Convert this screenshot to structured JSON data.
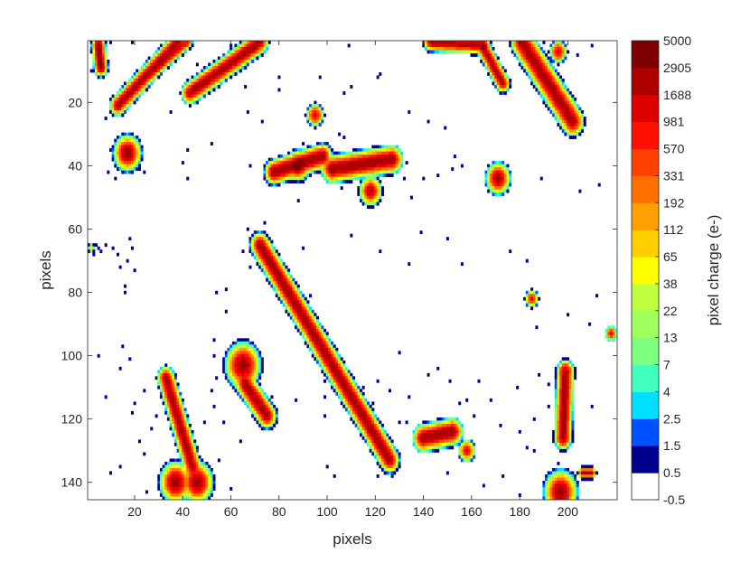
{
  "chart_data": {
    "type": "heatmap",
    "title": "",
    "xlabel": "pixels",
    "ylabel": "pixels",
    "xlim": [
      0.5,
      220.5
    ],
    "ylim": [
      0.5,
      145.5
    ],
    "y_reversed": true,
    "x_ticks": [
      20,
      40,
      60,
      80,
      100,
      120,
      140,
      160,
      180,
      200
    ],
    "y_ticks": [
      20,
      40,
      60,
      80,
      100,
      120,
      140
    ],
    "colorbar": {
      "label": "pixel charge (e-)",
      "tick_labels": [
        "-0.5",
        "0.5",
        "1.5",
        "2.5",
        "4",
        "7",
        "13",
        "22",
        "38",
        "65",
        "112",
        "192",
        "331",
        "570",
        "981",
        "1688",
        "2905",
        "5000"
      ],
      "colors": [
        "#ffffff",
        "#00008f",
        "#0050ff",
        "#00dfff",
        "#40ffbf",
        "#7fff7f",
        "#9fff5f",
        "#bfff3f",
        "#ffff00",
        "#ffcf00",
        "#ff9f00",
        "#ff7000",
        "#ff4000",
        "#ff1000",
        "#df0000",
        "#af0000",
        "#7f0000"
      ]
    },
    "tracks": [
      {
        "from": [
          5,
          2
        ],
        "to": [
          6,
          9
        ],
        "peak": 3100,
        "sigma": 0.8
      },
      {
        "from": [
          13,
          21
        ],
        "to": [
          38,
          1
        ],
        "peak": 2200,
        "sigma": 0.9
      },
      {
        "from": [
          28,
          10
        ],
        "to": [
          42,
          1
        ],
        "peak": 900,
        "sigma": 0.6
      },
      {
        "from": [
          43,
          17
        ],
        "to": [
          72,
          1
        ],
        "peak": 2300,
        "sigma": 1.0
      },
      {
        "from": [
          143,
          1
        ],
        "to": [
          165,
          2
        ],
        "peak": 2000,
        "sigma": 0.8
      },
      {
        "from": [
          165,
          3
        ],
        "to": [
          173,
          14
        ],
        "peak": 2000,
        "sigma": 0.8
      },
      {
        "from": [
          181,
          1
        ],
        "to": [
          202,
          26
        ],
        "peak": 2400,
        "sigma": 1.3
      },
      {
        "from": [
          78,
          42
        ],
        "to": [
          98,
          37
        ],
        "peak": 2800,
        "sigma": 1.1
      },
      {
        "from": [
          102,
          41
        ],
        "to": [
          127,
          38
        ],
        "peak": 2800,
        "sigma": 1.2
      },
      {
        "from": [
          72,
          65
        ],
        "to": [
          126,
          133
        ],
        "peak": 2500,
        "sigma": 1.1
      },
      {
        "from": [
          33,
          107
        ],
        "to": [
          44,
          135
        ],
        "peak": 2200,
        "sigma": 1.0
      },
      {
        "from": [
          66,
          109
        ],
        "to": [
          75,
          119
        ],
        "peak": 2400,
        "sigma": 1.1
      },
      {
        "from": [
          199,
          105
        ],
        "to": [
          198,
          126
        ],
        "peak": 2600,
        "sigma": 1.0
      },
      {
        "from": [
          140,
          126
        ],
        "to": [
          152,
          124
        ],
        "peak": 2700,
        "sigma": 1.2
      },
      {
        "from": [
          206,
          137
        ],
        "to": [
          210,
          137
        ],
        "peak": 2000,
        "sigma": 0.5
      }
    ],
    "blobs": [
      {
        "center": [
          17,
          36
        ],
        "peak": 3000,
        "sigma": 1.6
      },
      {
        "center": [
          95,
          24
        ],
        "peak": 1500,
        "sigma": 1.0
      },
      {
        "center": [
          118,
          48
        ],
        "peak": 2000,
        "sigma": 1.3
      },
      {
        "center": [
          171,
          44
        ],
        "peak": 2800,
        "sigma": 1.4
      },
      {
        "center": [
          196,
          4
        ],
        "peak": 1500,
        "sigma": 1.0
      },
      {
        "center": [
          185,
          82
        ],
        "peak": 1000,
        "sigma": 0.8
      },
      {
        "center": [
          158,
          130
        ],
        "peak": 1300,
        "sigma": 1.0
      },
      {
        "center": [
          65,
          103
        ],
        "peak": 3100,
        "sigma": 2.0
      },
      {
        "center": [
          37,
          140
        ],
        "peak": 3000,
        "sigma": 1.8
      },
      {
        "center": [
          46,
          140
        ],
        "peak": 3000,
        "sigma": 1.8
      },
      {
        "center": [
          197,
          143
        ],
        "peak": 3000,
        "sigma": 1.9
      },
      {
        "center": [
          88,
          40
        ],
        "peak": 3000,
        "sigma": 1.3
      },
      {
        "center": [
          218,
          93
        ],
        "peak": 1000,
        "sigma": 0.7
      },
      {
        "center": [
          2,
          66
        ],
        "peak": 60,
        "sigma": 0.5
      }
    ],
    "isolated_pixels": [
      [
        10,
        1
      ],
      [
        19,
        1
      ],
      [
        60,
        2
      ],
      [
        109,
        2
      ],
      [
        162,
        1
      ],
      [
        190,
        1
      ],
      [
        210,
        2
      ],
      [
        2,
        10
      ],
      [
        8,
        6
      ],
      [
        33,
        9
      ],
      [
        46,
        8
      ],
      [
        97,
        12
      ],
      [
        121,
        12
      ],
      [
        122,
        11
      ],
      [
        80,
        16
      ],
      [
        80,
        12
      ],
      [
        110,
        15
      ],
      [
        107,
        17
      ],
      [
        66,
        15
      ],
      [
        204,
        5
      ],
      [
        8,
        25
      ],
      [
        35,
        23
      ],
      [
        19,
        32
      ],
      [
        10,
        35
      ],
      [
        12,
        39
      ],
      [
        9,
        42
      ],
      [
        12,
        44
      ],
      [
        24,
        42
      ],
      [
        42,
        35
      ],
      [
        22,
        41
      ],
      [
        67,
        23
      ],
      [
        73,
        26
      ],
      [
        52,
        33
      ],
      [
        105,
        30
      ],
      [
        107,
        31
      ],
      [
        90,
        33
      ],
      [
        134,
        23
      ],
      [
        142,
        26
      ],
      [
        149,
        28
      ],
      [
        68,
        40
      ],
      [
        40,
        39
      ],
      [
        42,
        44
      ],
      [
        106,
        47
      ],
      [
        88,
        51
      ],
      [
        114,
        37
      ],
      [
        129,
        41
      ],
      [
        132,
        44
      ],
      [
        135,
        50
      ],
      [
        133,
        39
      ],
      [
        140,
        44
      ],
      [
        146,
        43
      ],
      [
        153,
        37
      ],
      [
        156,
        40
      ],
      [
        152,
        41
      ],
      [
        122,
        45
      ],
      [
        119,
        53
      ],
      [
        189,
        44
      ],
      [
        205,
        48
      ],
      [
        213,
        46
      ],
      [
        2,
        65
      ],
      [
        4,
        65
      ],
      [
        5,
        66
      ],
      [
        6,
        67
      ],
      [
        8,
        65
      ],
      [
        11,
        66
      ],
      [
        3,
        68
      ],
      [
        13,
        68
      ],
      [
        17,
        70
      ],
      [
        20,
        73
      ],
      [
        14,
        72
      ],
      [
        18,
        63
      ],
      [
        19,
        66
      ],
      [
        67,
        60
      ],
      [
        74,
        58
      ],
      [
        70,
        62
      ],
      [
        65,
        67
      ],
      [
        68,
        72
      ],
      [
        82,
        74
      ],
      [
        86,
        78
      ],
      [
        110,
        62
      ],
      [
        122,
        67
      ],
      [
        134,
        71
      ],
      [
        139,
        61
      ],
      [
        150,
        63
      ],
      [
        156,
        71
      ],
      [
        176,
        67
      ],
      [
        183,
        70
      ],
      [
        90,
        66
      ],
      [
        16,
        78
      ],
      [
        16,
        80
      ],
      [
        15,
        97
      ],
      [
        5,
        100
      ],
      [
        18,
        101
      ],
      [
        14,
        104
      ],
      [
        54,
        80
      ],
      [
        58,
        79
      ],
      [
        58,
        86
      ],
      [
        53,
        95
      ],
      [
        53,
        100
      ],
      [
        54,
        107
      ],
      [
        93,
        81
      ],
      [
        100,
        97
      ],
      [
        101,
        98
      ],
      [
        99,
        108
      ],
      [
        99,
        113
      ],
      [
        107,
        112
      ],
      [
        115,
        110
      ],
      [
        121,
        108
      ],
      [
        126,
        111
      ],
      [
        130,
        99
      ],
      [
        134,
        113
      ],
      [
        142,
        106
      ],
      [
        146,
        104
      ],
      [
        151,
        108
      ],
      [
        155,
        115
      ],
      [
        163,
        108
      ],
      [
        179,
        110
      ],
      [
        188,
        106
      ],
      [
        192,
        109
      ],
      [
        200,
        87
      ],
      [
        209,
        90
      ],
      [
        212,
        81
      ],
      [
        187,
        91
      ],
      [
        8,
        113
      ],
      [
        19,
        118
      ],
      [
        24,
        111
      ],
      [
        20,
        115
      ],
      [
        22,
        127
      ],
      [
        27,
        123
      ],
      [
        29,
        119
      ],
      [
        52,
        111
      ],
      [
        53,
        116
      ],
      [
        49,
        121
      ],
      [
        57,
        121
      ],
      [
        64,
        127
      ],
      [
        77,
        113
      ],
      [
        87,
        114
      ],
      [
        99,
        119
      ],
      [
        117,
        119
      ],
      [
        119,
        115
      ],
      [
        130,
        121
      ],
      [
        133,
        121
      ],
      [
        143,
        121
      ],
      [
        158,
        114
      ],
      [
        161,
        119
      ],
      [
        168,
        114
      ],
      [
        172,
        122
      ],
      [
        180,
        124
      ],
      [
        186,
        120
      ],
      [
        192,
        116
      ],
      [
        210,
        116
      ],
      [
        24,
        131
      ],
      [
        10,
        137
      ],
      [
        14,
        135
      ],
      [
        25,
        143
      ],
      [
        55,
        133
      ],
      [
        60,
        142
      ],
      [
        100,
        135
      ],
      [
        103,
        138
      ],
      [
        121,
        138
      ],
      [
        127,
        138
      ],
      [
        150,
        137
      ],
      [
        165,
        141
      ],
      [
        173,
        138
      ],
      [
        180,
        144
      ],
      [
        183,
        129
      ],
      [
        186,
        130
      ],
      [
        196,
        134
      ]
    ]
  }
}
